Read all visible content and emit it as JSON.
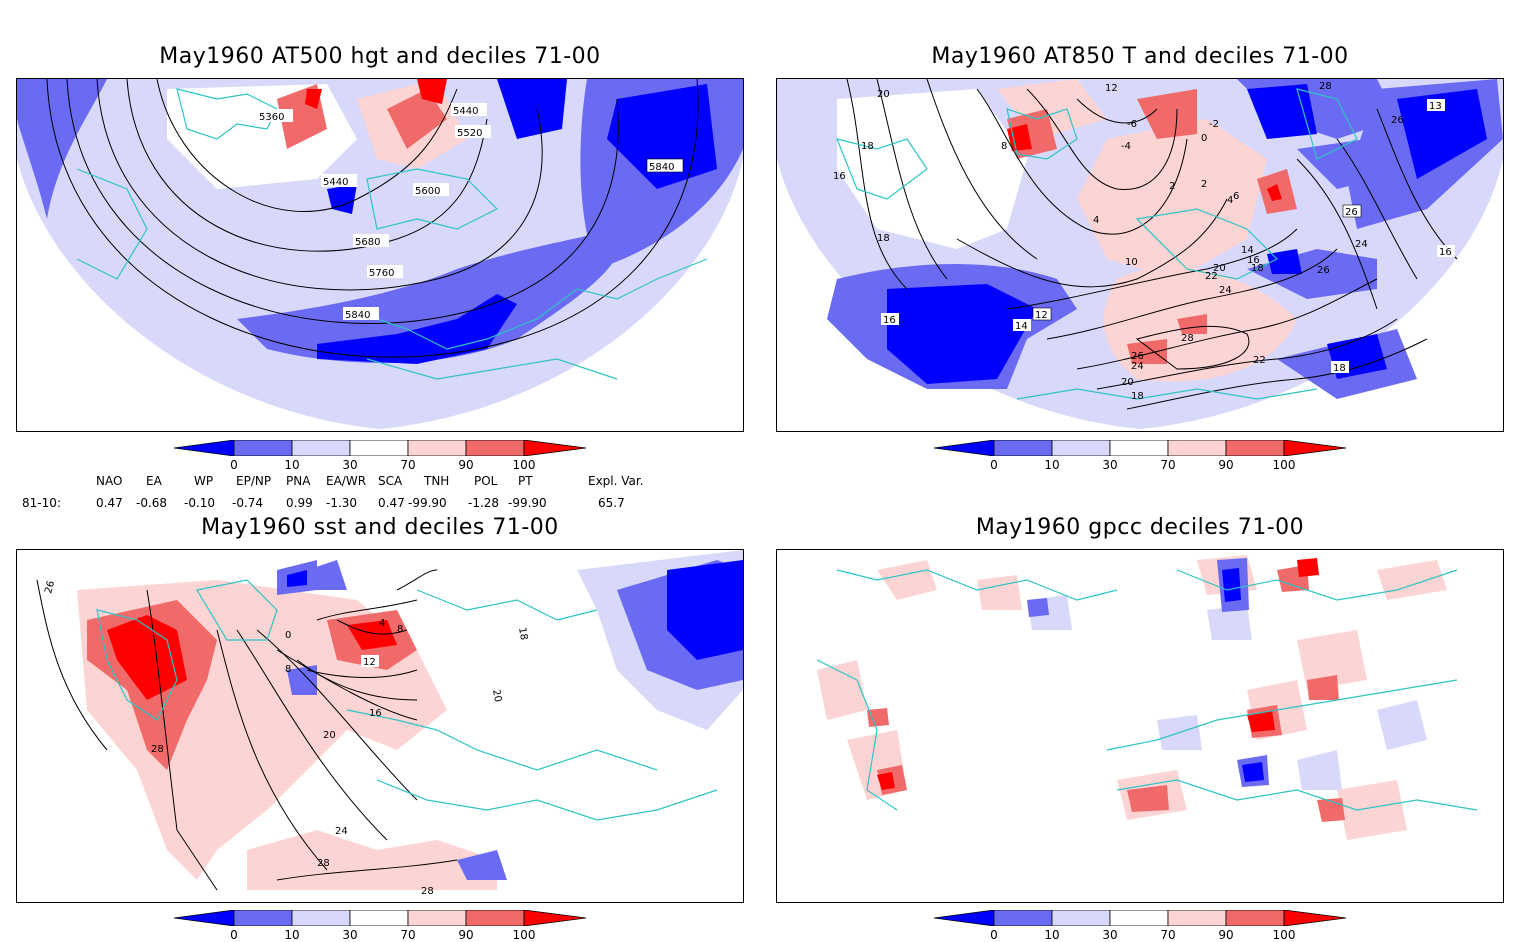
{
  "panels": [
    {
      "title": "May1960 AT500 hgt and deciles 71-00",
      "contour_labels": [
        "5360",
        "5440",
        "5520",
        "5440",
        "5600",
        "5680",
        "5760",
        "5840",
        "5840"
      ]
    },
    {
      "title": "May1960 AT850 T and deciles 71-00",
      "contour_labels": [
        "20",
        "18",
        "16",
        "18",
        "16",
        "4",
        "8",
        "2",
        "0",
        "-2",
        "-6",
        "-4",
        "2",
        "4",
        "6",
        "10",
        "12",
        "14",
        "14",
        "16",
        "18",
        "20",
        "22",
        "24",
        "26",
        "28",
        "26",
        "24",
        "22",
        "20",
        "18",
        "26",
        "24",
        "16",
        "18",
        "28",
        "13",
        "26",
        "12"
      ]
    },
    {
      "title": "May1960 sst and deciles 71-00",
      "contour_labels": [
        "26",
        "28",
        "0",
        "4",
        "8",
        "12",
        "8",
        "16",
        "20",
        "24",
        "28",
        "28",
        "18",
        "20"
      ]
    },
    {
      "title": "May1960 gpcc deciles 71-00",
      "contour_labels": []
    }
  ],
  "colorbar": {
    "labels": [
      "0",
      "10",
      "30",
      "70",
      "90",
      "100"
    ],
    "colors": [
      "#0000ff",
      "#6a6af2",
      "#d8d8fa",
      "#ffffff",
      "#fdd4d4",
      "#f06a6a",
      "#ff0000"
    ]
  },
  "indices": {
    "headers": [
      "NAO",
      "EA",
      "WP",
      "EP/NP",
      "PNA",
      "EA/WR",
      "SCA",
      "TNH",
      "POL",
      "PT",
      "Expl. Var."
    ],
    "row_label": "81-10:",
    "values": [
      "0.47",
      "-0.68",
      "-0.10",
      "-0.74",
      "0.99",
      "-1.30",
      "0.47",
      "-99.90",
      "-1.28",
      "-99.90",
      "65.7"
    ]
  },
  "map_colors": {
    "coast": "#2ec4c4",
    "deep_blue": "#0000ff",
    "mid_blue": "#6a6af2",
    "light_blue": "#d8d8fa",
    "light_red": "#fdd4d4",
    "mid_red": "#f06a6a",
    "deep_red": "#ff0000"
  }
}
